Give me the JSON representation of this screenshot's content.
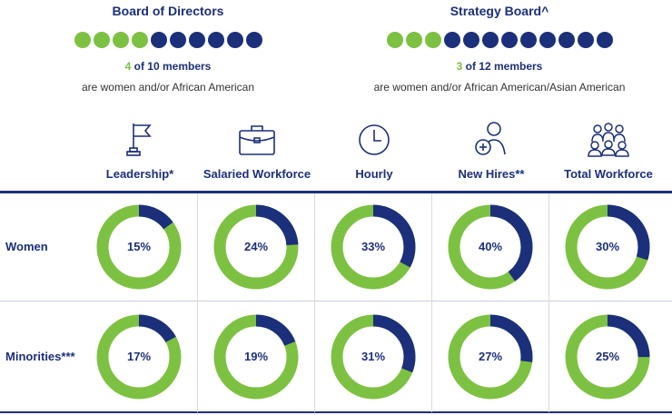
{
  "boards": [
    {
      "title": "Board of Directors",
      "highlight": "4",
      "members_text": " of 10 members",
      "subtitle": "are women and/or African American",
      "total": 10,
      "highlighted": 4
    },
    {
      "title": "Strategy Board^",
      "highlight": "3",
      "members_text": " of 12 members",
      "subtitle": "are women and/or African American/Asian American",
      "total": 12,
      "highlighted": 3
    }
  ],
  "colors": {
    "green": "#7dc142",
    "navy": "#1b2f7a"
  },
  "chart_data": {
    "type": "donut-grid",
    "categories": [
      "Leadership*",
      "Salaried Workforce",
      "Hourly",
      "New Hires**",
      "Total Workforce"
    ],
    "icons": [
      "flag-icon",
      "briefcase-icon",
      "clock-icon",
      "add-person-icon",
      "group-icon"
    ],
    "series": [
      {
        "name": "Women",
        "values": [
          15,
          24,
          33,
          40,
          30
        ],
        "labels": [
          "15%",
          "24%",
          "33%",
          "40%",
          "30%"
        ]
      },
      {
        "name": "Minorities***",
        "values": [
          17,
          19,
          31,
          27,
          25
        ],
        "labels": [
          "17%",
          "19%",
          "31%",
          "27%",
          "25%"
        ]
      }
    ]
  }
}
